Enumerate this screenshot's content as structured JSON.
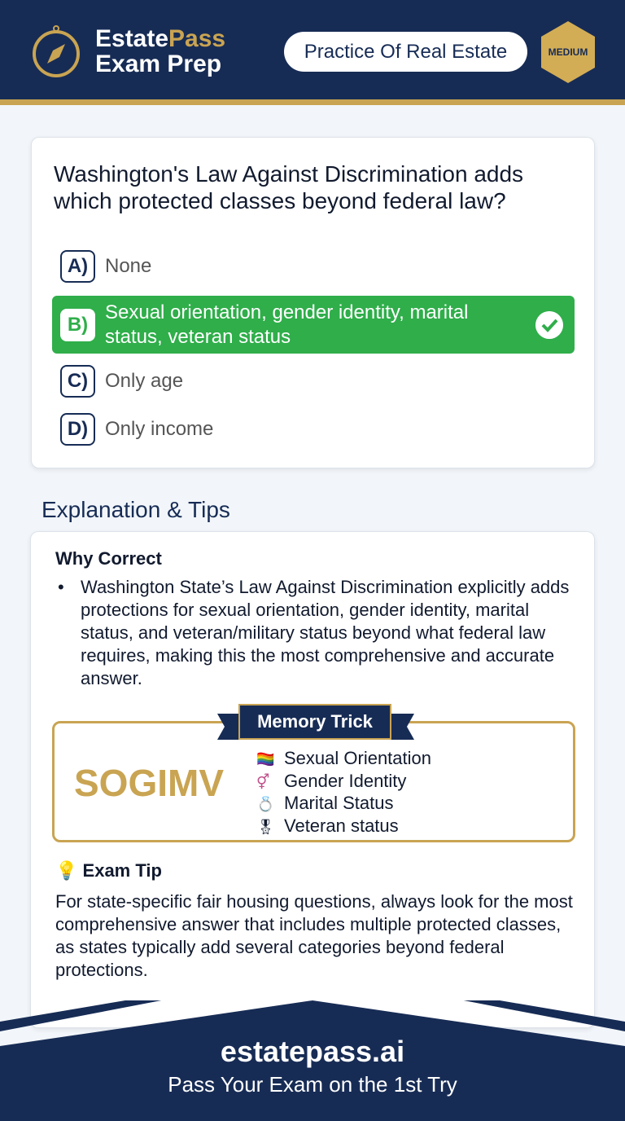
{
  "header": {
    "brand_part1": "Estate",
    "brand_part2": "Pass",
    "brand_line2": "Exam Prep",
    "category": "Practice Of Real Estate",
    "difficulty": "MEDIUM"
  },
  "question": {
    "text": "Washington's Law Against Discrimination adds which protected classes beyond federal law?",
    "options": [
      {
        "letter": "A)",
        "text": "None"
      },
      {
        "letter": "B)",
        "text": "Sexual orientation, gender identity, marital status, veteran status",
        "correct": true
      },
      {
        "letter": "C)",
        "text": "Only age"
      },
      {
        "letter": "D)",
        "text": "Only income"
      }
    ]
  },
  "explanation": {
    "heading": "Explanation & Tips",
    "why_title": "Why Correct",
    "why_text": "Washington State’s Law Against Discrimination explicitly adds protections for sexual orientation, gender identity, marital status, and veteran/military status beyond what federal law requires, making this the most comprehensive and accurate answer.",
    "memory": {
      "title": "Memory Trick",
      "acronym": "SOGIMV",
      "items": [
        {
          "icon": "🏳️‍🌈",
          "text": "Sexual Orientation"
        },
        {
          "icon": "⚥",
          "text": "Gender Identity"
        },
        {
          "icon": "💍",
          "text": "Marital Status"
        },
        {
          "icon": "🎖",
          "text": "Veteran status"
        }
      ]
    },
    "tip_title": "Exam Tip",
    "tip_text": "For state-specific fair housing questions, always look for the most comprehensive answer that includes multiple protected classes, as states typically add several categories beyond federal protections."
  },
  "footer": {
    "site": "estatepass.ai",
    "tagline": "Pass Your Exam on the 1st Try"
  },
  "colors": {
    "navy": "#172c55",
    "gold": "#c9a452",
    "correct": "#2fae4a"
  }
}
